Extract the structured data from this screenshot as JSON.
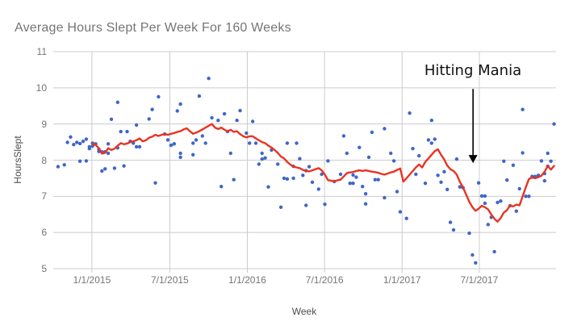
{
  "chart_data": {
    "type": "scatter",
    "title": "Average Hours Slept Per Week For 160 Weeks",
    "xlabel": "Week",
    "ylabel": "HoursSlept",
    "ylim": [
      5,
      11
    ],
    "xlim_weeks": [
      1,
      160
    ],
    "grid": true,
    "legend": "none",
    "y_ticks": [
      11,
      10,
      9,
      8,
      7,
      6,
      5
    ],
    "x_ticks": [
      {
        "label": "1/1/2015",
        "week": 12.8
      },
      {
        "label": "7/1/2015",
        "week": 37.6
      },
      {
        "label": "1/1/2016",
        "week": 62.3
      },
      {
        "label": "7/1/2016",
        "week": 86.9
      },
      {
        "label": "1/1/2017",
        "week": 111.6
      },
      {
        "label": "7/1/2017",
        "week": 136.2
      }
    ],
    "colors": {
      "points": "#3e66c9",
      "trend": "#ea3323",
      "grid": "#cccccc",
      "tick_text": "#757575",
      "axis_title_text": "#4d4d4d",
      "annotation_text": "#111111"
    },
    "annotation": {
      "text": "Hitting Mania",
      "week": 134.2,
      "arrow_start_hours": 9.97,
      "arrow_tip_hours": 7.92
    },
    "series": [
      {
        "name": "HoursSlept (weekly)",
        "render": "points",
        "points": [
          [
            2,
            7.82
          ],
          [
            4,
            7.87
          ],
          [
            5,
            8.49
          ],
          [
            6,
            8.64
          ],
          [
            7,
            8.43
          ],
          [
            8,
            8.49
          ],
          [
            9,
            8.46
          ],
          [
            9,
            7.97
          ],
          [
            10,
            8.52
          ],
          [
            11,
            7.98
          ],
          [
            11,
            8.58
          ],
          [
            12,
            8.32
          ],
          [
            12,
            8.37
          ],
          [
            13,
            8.47
          ],
          [
            13,
            8.39
          ],
          [
            14,
            8.45
          ],
          [
            15,
            8.24
          ],
          [
            15,
            8.3
          ],
          [
            16,
            8.23
          ],
          [
            16,
            7.7
          ],
          [
            17,
            7.76
          ],
          [
            17,
            8.23
          ],
          [
            18,
            8.19
          ],
          [
            18,
            8.45
          ],
          [
            19,
            9.13
          ],
          [
            20,
            7.78
          ],
          [
            21,
            9.6
          ],
          [
            21,
            8.34
          ],
          [
            22,
            8.79
          ],
          [
            23,
            7.84
          ],
          [
            24,
            8.79
          ],
          [
            25,
            8.52
          ],
          [
            26,
            8.47
          ],
          [
            27,
            8.97
          ],
          [
            27,
            8.37
          ],
          [
            28,
            8.37
          ],
          [
            31,
            9.14
          ],
          [
            32,
            9.4
          ],
          [
            33,
            7.37
          ],
          [
            34,
            9.75
          ],
          [
            36,
            8.72
          ],
          [
            37,
            8.56
          ],
          [
            38,
            8.41
          ],
          [
            39,
            8.45
          ],
          [
            39,
            8.45
          ],
          [
            40,
            9.36
          ],
          [
            41,
            8.19
          ],
          [
            41,
            8.08
          ],
          [
            41,
            9.55
          ],
          [
            45,
            8.47
          ],
          [
            45,
            8.15
          ],
          [
            46,
            8.56
          ],
          [
            47,
            9.77
          ],
          [
            48,
            8.67
          ],
          [
            49,
            8.47
          ],
          [
            50,
            10.26
          ],
          [
            51,
            9.17
          ],
          [
            53,
            9.1
          ],
          [
            54,
            7.27
          ],
          [
            55,
            9.28
          ],
          [
            56,
            8.79
          ],
          [
            57,
            8.19
          ],
          [
            58,
            7.46
          ],
          [
            59,
            9.1
          ],
          [
            60,
            9.37
          ],
          [
            62,
            8.75
          ],
          [
            63,
            8.47
          ],
          [
            64,
            9.07
          ],
          [
            65,
            8.47
          ],
          [
            66,
            7.89
          ],
          [
            67,
            8.19
          ],
          [
            67,
            8.03
          ],
          [
            68,
            8.06
          ],
          [
            69,
            7.26
          ],
          [
            70,
            8.28
          ],
          [
            72,
            7.89
          ],
          [
            73,
            6.7
          ],
          [
            74,
            7.5
          ],
          [
            75,
            8.47
          ],
          [
            75,
            7.48
          ],
          [
            77,
            7.5
          ],
          [
            77,
            7.83
          ],
          [
            78,
            8.47
          ],
          [
            79,
            8.04
          ],
          [
            80,
            7.58
          ],
          [
            81,
            6.75
          ],
          [
            81,
            7.71
          ],
          [
            82,
            7.82
          ],
          [
            83,
            7.39
          ],
          [
            85,
            7.2
          ],
          [
            86,
            7.61
          ],
          [
            87,
            6.78
          ],
          [
            88,
            7.98
          ],
          [
            90,
            7.41
          ],
          [
            92,
            7.61
          ],
          [
            93,
            8.67
          ],
          [
            94,
            8.19
          ],
          [
            95,
            7.36
          ],
          [
            96,
            7.36
          ],
          [
            96,
            7.59
          ],
          [
            97,
            7.53
          ],
          [
            98,
            8.35
          ],
          [
            99,
            7.27
          ],
          [
            100,
            7.07
          ],
          [
            100,
            6.79
          ],
          [
            101,
            8.08
          ],
          [
            102,
            8.77
          ],
          [
            103,
            7.46
          ],
          [
            104,
            7.46
          ],
          [
            106,
            6.96
          ],
          [
            106,
            8.87
          ],
          [
            108,
            8.19
          ],
          [
            109,
            7.98
          ],
          [
            110,
            7.13
          ],
          [
            111,
            6.57
          ],
          [
            113,
            6.39
          ],
          [
            114,
            9.3
          ],
          [
            115,
            8.32
          ],
          [
            116,
            7.61
          ],
          [
            117,
            8.12
          ],
          [
            119,
            7.36
          ],
          [
            120,
            8.56
          ],
          [
            121,
            8.47
          ],
          [
            121,
            9.1
          ],
          [
            122,
            8.58
          ],
          [
            123,
            7.58
          ],
          [
            124,
            7.39
          ],
          [
            125,
            7.68
          ],
          [
            126,
            7.19
          ],
          [
            127,
            6.28
          ],
          [
            128,
            6.07
          ],
          [
            129,
            8.03
          ],
          [
            130,
            7.26
          ],
          [
            131,
            7.24
          ],
          [
            133,
            5.98
          ],
          [
            134,
            5.38
          ],
          [
            135,
            5.16
          ],
          [
            136,
            7.37
          ],
          [
            137,
            7.01
          ],
          [
            138,
            6.81
          ],
          [
            138,
            7.01
          ],
          [
            139,
            6.22
          ],
          [
            140,
            6.42
          ],
          [
            141,
            5.47
          ],
          [
            142,
            6.83
          ],
          [
            143,
            6.87
          ],
          [
            144,
            7.97
          ],
          [
            145,
            7.45
          ],
          [
            146,
            6.74
          ],
          [
            147,
            7.86
          ],
          [
            148,
            6.59
          ],
          [
            149,
            7.21
          ],
          [
            150,
            9.4
          ],
          [
            150,
            8.2
          ],
          [
            151,
            7.0
          ],
          [
            152,
            7.0
          ],
          [
            153,
            7.55
          ],
          [
            154,
            7.55
          ],
          [
            155,
            7.58
          ],
          [
            156,
            7.98
          ],
          [
            157,
            7.63
          ],
          [
            157,
            7.43
          ],
          [
            158,
            7.83
          ],
          [
            158,
            8.19
          ],
          [
            159,
            7.97
          ],
          [
            160,
            9.0
          ]
        ]
      },
      {
        "name": "Moving average",
        "render": "line",
        "start_week": 13,
        "values": [
          8.45,
          8.42,
          8.33,
          8.18,
          8.2,
          8.33,
          8.28,
          8.32,
          8.4,
          8.47,
          8.44,
          8.46,
          8.5,
          8.52,
          8.55,
          8.6,
          8.52,
          8.55,
          8.62,
          8.65,
          8.7,
          8.67,
          8.7,
          8.72,
          8.7,
          8.73,
          8.75,
          8.78,
          8.8,
          8.85,
          8.88,
          8.8,
          8.73,
          8.76,
          8.8,
          8.85,
          8.9,
          8.95,
          9.0,
          8.9,
          8.86,
          8.9,
          8.84,
          8.8,
          8.84,
          8.78,
          8.8,
          8.72,
          8.66,
          8.63,
          8.66,
          8.66,
          8.6,
          8.55,
          8.5,
          8.47,
          8.4,
          8.35,
          8.28,
          8.2,
          8.1,
          8.05,
          7.95,
          7.88,
          7.82,
          7.8,
          7.78,
          7.73,
          7.7,
          7.69,
          7.72,
          7.75,
          7.78,
          7.72,
          7.6,
          7.45,
          7.43,
          7.42,
          7.44,
          7.46,
          7.55,
          7.64,
          7.66,
          7.67,
          7.7,
          7.72,
          7.7,
          7.72,
          7.7,
          7.68,
          7.67,
          7.65,
          7.62,
          7.6,
          7.63,
          7.66,
          7.68,
          7.73,
          7.77,
          7.41,
          7.5,
          7.6,
          7.7,
          7.8,
          7.88,
          7.8,
          7.95,
          8.05,
          8.15,
          8.25,
          8.3,
          8.15,
          8.02,
          7.85,
          7.75,
          7.7,
          7.6,
          7.4,
          7.25,
          7.05,
          6.85,
          6.7,
          6.6,
          6.66,
          6.74,
          6.7,
          6.64,
          6.5,
          6.38,
          6.3,
          6.4,
          6.55,
          6.62,
          6.75,
          6.72,
          6.77,
          6.75,
          7.0,
          7.25,
          7.48,
          7.52,
          7.5,
          7.53,
          7.57,
          7.68,
          7.84,
          7.74,
          7.84
        ]
      }
    ]
  }
}
